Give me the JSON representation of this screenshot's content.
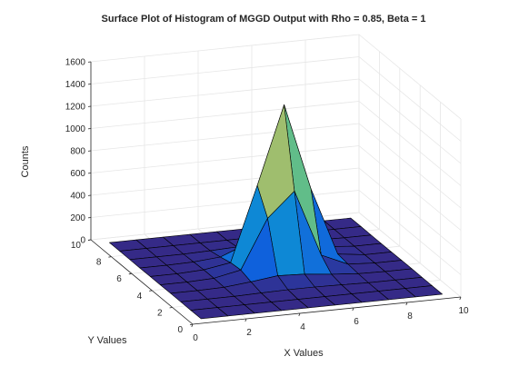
{
  "chart_data": {
    "type": "surface",
    "title": "Surface Plot of Histogram of MGGD Output with Rho = 0.85, Beta = 1",
    "xlabel": "X Values",
    "ylabel": "Y Values",
    "zlabel": "Counts",
    "xlim": [
      0,
      10
    ],
    "ylim": [
      0,
      10
    ],
    "zlim": [
      0,
      1600
    ],
    "x_ticks": [
      0,
      2,
      4,
      6,
      8,
      10
    ],
    "y_ticks": [
      0,
      2,
      4,
      6,
      8,
      10
    ],
    "z_ticks": [
      0,
      200,
      400,
      600,
      800,
      1000,
      1200,
      1400,
      1600
    ],
    "grid": true,
    "colormap": "parula",
    "x": [
      0.5,
      1.5,
      2.5,
      3.5,
      4.5,
      5.5,
      6.5,
      7.5,
      8.5,
      9.5
    ],
    "y": [
      0.5,
      1.5,
      2.5,
      3.5,
      4.5,
      5.5,
      6.5,
      7.5,
      8.5,
      9.5
    ],
    "z": [
      [
        0,
        0,
        0,
        0,
        0,
        0,
        0,
        0,
        0,
        0
      ],
      [
        0,
        0,
        0,
        0,
        0,
        0,
        0,
        0,
        0,
        0
      ],
      [
        0,
        0,
        0,
        5,
        10,
        10,
        5,
        0,
        0,
        0
      ],
      [
        0,
        0,
        5,
        30,
        60,
        50,
        25,
        5,
        0,
        0
      ],
      [
        0,
        0,
        10,
        60,
        500,
        720,
        120,
        15,
        0,
        0
      ],
      [
        0,
        0,
        10,
        50,
        720,
        1420,
        640,
        30,
        0,
        0
      ],
      [
        0,
        0,
        5,
        25,
        120,
        640,
        380,
        20,
        0,
        0
      ],
      [
        0,
        0,
        0,
        5,
        15,
        30,
        20,
        5,
        0,
        0
      ],
      [
        0,
        0,
        0,
        0,
        0,
        0,
        0,
        0,
        0,
        0
      ],
      [
        0,
        0,
        0,
        0,
        0,
        0,
        0,
        0,
        0,
        0
      ]
    ]
  }
}
